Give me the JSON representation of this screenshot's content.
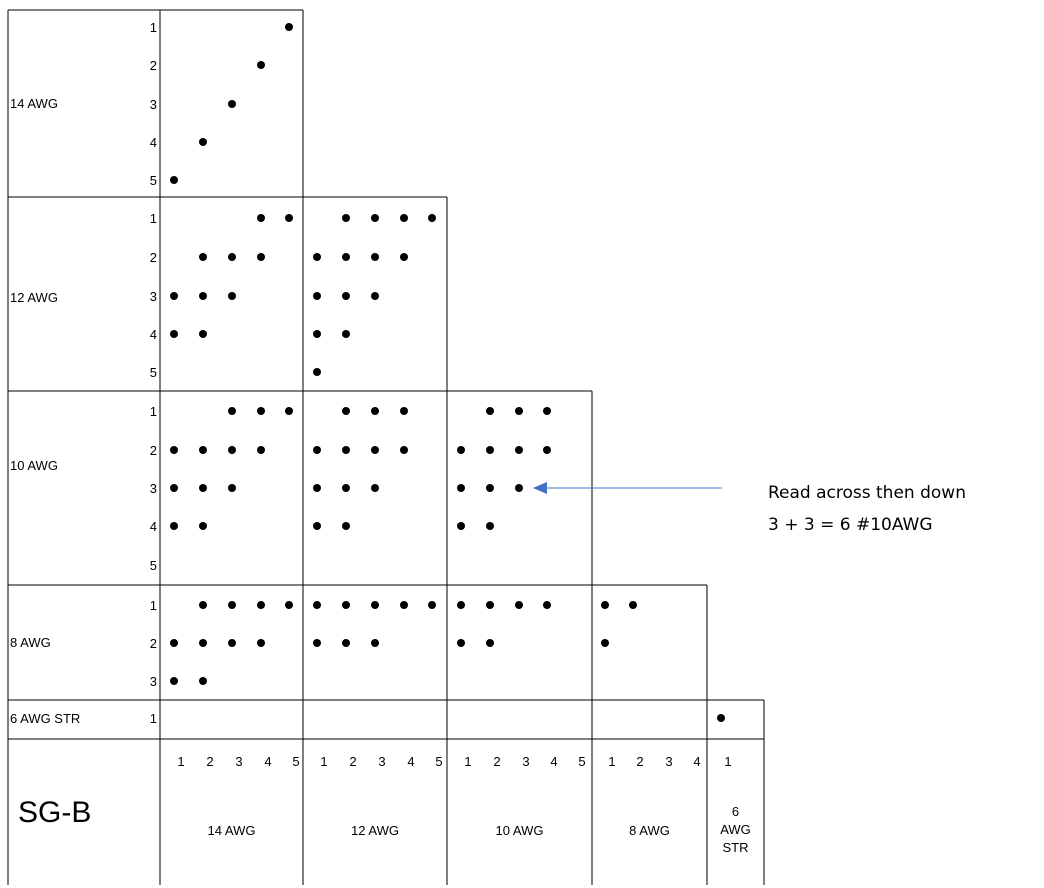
{
  "corner_label": "SG-B",
  "annotation": {
    "line1": "Read across then down",
    "line2": "3 + 3 = 6 #10AWG",
    "arrow_color": "#4472C4"
  },
  "row_groups": [
    {
      "label": "14 AWG",
      "rows": [
        "1",
        "2",
        "3",
        "4",
        "5"
      ]
    },
    {
      "label": "12 AWG",
      "rows": [
        "1",
        "2",
        "3",
        "4",
        "5"
      ]
    },
    {
      "label": "10 AWG",
      "rows": [
        "1",
        "2",
        "3",
        "4",
        "5"
      ]
    },
    {
      "label": "8 AWG",
      "rows": [
        "1",
        "2",
        "3"
      ]
    },
    {
      "label": "6 AWG STR",
      "rows": [
        "1"
      ]
    }
  ],
  "col_groups": [
    {
      "label": "14 AWG",
      "cols": [
        "1",
        "2",
        "3",
        "4",
        "5"
      ]
    },
    {
      "label": "12 AWG",
      "cols": [
        "1",
        "2",
        "3",
        "4",
        "5"
      ]
    },
    {
      "label": "10 AWG",
      "cols": [
        "1",
        "2",
        "3",
        "4",
        "5"
      ]
    },
    {
      "label": "8 AWG",
      "cols": [
        "1",
        "2",
        "3",
        "4"
      ]
    },
    {
      "label_lines": [
        "6",
        "AWG",
        "STR"
      ],
      "cols": [
        "1"
      ]
    }
  ],
  "dots": [
    {
      "rg": 0,
      "r": 1,
      "cg": 0,
      "c": 5
    },
    {
      "rg": 0,
      "r": 2,
      "cg": 0,
      "c": 4
    },
    {
      "rg": 0,
      "r": 3,
      "cg": 0,
      "c": 3
    },
    {
      "rg": 0,
      "r": 4,
      "cg": 0,
      "c": 2
    },
    {
      "rg": 0,
      "r": 5,
      "cg": 0,
      "c": 1
    },
    {
      "rg": 1,
      "r": 1,
      "cg": 0,
      "c": 4
    },
    {
      "rg": 1,
      "r": 1,
      "cg": 0,
      "c": 5
    },
    {
      "rg": 1,
      "r": 2,
      "cg": 0,
      "c": 2
    },
    {
      "rg": 1,
      "r": 2,
      "cg": 0,
      "c": 3
    },
    {
      "rg": 1,
      "r": 2,
      "cg": 0,
      "c": 4
    },
    {
      "rg": 1,
      "r": 3,
      "cg": 0,
      "c": 1
    },
    {
      "rg": 1,
      "r": 3,
      "cg": 0,
      "c": 2
    },
    {
      "rg": 1,
      "r": 3,
      "cg": 0,
      "c": 3
    },
    {
      "rg": 1,
      "r": 4,
      "cg": 0,
      "c": 1
    },
    {
      "rg": 1,
      "r": 4,
      "cg": 0,
      "c": 2
    },
    {
      "rg": 1,
      "r": 1,
      "cg": 1,
      "c": 2
    },
    {
      "rg": 1,
      "r": 1,
      "cg": 1,
      "c": 3
    },
    {
      "rg": 1,
      "r": 1,
      "cg": 1,
      "c": 4
    },
    {
      "rg": 1,
      "r": 1,
      "cg": 1,
      "c": 5
    },
    {
      "rg": 1,
      "r": 2,
      "cg": 1,
      "c": 1
    },
    {
      "rg": 1,
      "r": 2,
      "cg": 1,
      "c": 2
    },
    {
      "rg": 1,
      "r": 2,
      "cg": 1,
      "c": 3
    },
    {
      "rg": 1,
      "r": 2,
      "cg": 1,
      "c": 4
    },
    {
      "rg": 1,
      "r": 3,
      "cg": 1,
      "c": 1
    },
    {
      "rg": 1,
      "r": 3,
      "cg": 1,
      "c": 2
    },
    {
      "rg": 1,
      "r": 3,
      "cg": 1,
      "c": 3
    },
    {
      "rg": 1,
      "r": 4,
      "cg": 1,
      "c": 1
    },
    {
      "rg": 1,
      "r": 4,
      "cg": 1,
      "c": 2
    },
    {
      "rg": 1,
      "r": 5,
      "cg": 1,
      "c": 1
    },
    {
      "rg": 2,
      "r": 1,
      "cg": 0,
      "c": 3
    },
    {
      "rg": 2,
      "r": 1,
      "cg": 0,
      "c": 4
    },
    {
      "rg": 2,
      "r": 1,
      "cg": 0,
      "c": 5
    },
    {
      "rg": 2,
      "r": 2,
      "cg": 0,
      "c": 1
    },
    {
      "rg": 2,
      "r": 2,
      "cg": 0,
      "c": 2
    },
    {
      "rg": 2,
      "r": 2,
      "cg": 0,
      "c": 3
    },
    {
      "rg": 2,
      "r": 2,
      "cg": 0,
      "c": 4
    },
    {
      "rg": 2,
      "r": 3,
      "cg": 0,
      "c": 1
    },
    {
      "rg": 2,
      "r": 3,
      "cg": 0,
      "c": 2
    },
    {
      "rg": 2,
      "r": 3,
      "cg": 0,
      "c": 3
    },
    {
      "rg": 2,
      "r": 4,
      "cg": 0,
      "c": 1
    },
    {
      "rg": 2,
      "r": 4,
      "cg": 0,
      "c": 2
    },
    {
      "rg": 2,
      "r": 1,
      "cg": 1,
      "c": 2
    },
    {
      "rg": 2,
      "r": 1,
      "cg": 1,
      "c": 3
    },
    {
      "rg": 2,
      "r": 1,
      "cg": 1,
      "c": 4
    },
    {
      "rg": 2,
      "r": 2,
      "cg": 1,
      "c": 1
    },
    {
      "rg": 2,
      "r": 2,
      "cg": 1,
      "c": 2
    },
    {
      "rg": 2,
      "r": 2,
      "cg": 1,
      "c": 3
    },
    {
      "rg": 2,
      "r": 2,
      "cg": 1,
      "c": 4
    },
    {
      "rg": 2,
      "r": 3,
      "cg": 1,
      "c": 1
    },
    {
      "rg": 2,
      "r": 3,
      "cg": 1,
      "c": 2
    },
    {
      "rg": 2,
      "r": 3,
      "cg": 1,
      "c": 3
    },
    {
      "rg": 2,
      "r": 4,
      "cg": 1,
      "c": 1
    },
    {
      "rg": 2,
      "r": 4,
      "cg": 1,
      "c": 2
    },
    {
      "rg": 2,
      "r": 1,
      "cg": 2,
      "c": 2
    },
    {
      "rg": 2,
      "r": 1,
      "cg": 2,
      "c": 3
    },
    {
      "rg": 2,
      "r": 1,
      "cg": 2,
      "c": 4
    },
    {
      "rg": 2,
      "r": 2,
      "cg": 2,
      "c": 1
    },
    {
      "rg": 2,
      "r": 2,
      "cg": 2,
      "c": 2
    },
    {
      "rg": 2,
      "r": 2,
      "cg": 2,
      "c": 3
    },
    {
      "rg": 2,
      "r": 2,
      "cg": 2,
      "c": 4
    },
    {
      "rg": 2,
      "r": 3,
      "cg": 2,
      "c": 1
    },
    {
      "rg": 2,
      "r": 3,
      "cg": 2,
      "c": 2
    },
    {
      "rg": 2,
      "r": 3,
      "cg": 2,
      "c": 3
    },
    {
      "rg": 2,
      "r": 4,
      "cg": 2,
      "c": 1
    },
    {
      "rg": 2,
      "r": 4,
      "cg": 2,
      "c": 2
    },
    {
      "rg": 3,
      "r": 1,
      "cg": 0,
      "c": 2
    },
    {
      "rg": 3,
      "r": 1,
      "cg": 0,
      "c": 3
    },
    {
      "rg": 3,
      "r": 1,
      "cg": 0,
      "c": 4
    },
    {
      "rg": 3,
      "r": 1,
      "cg": 0,
      "c": 5
    },
    {
      "rg": 3,
      "r": 2,
      "cg": 0,
      "c": 1
    },
    {
      "rg": 3,
      "r": 2,
      "cg": 0,
      "c": 2
    },
    {
      "rg": 3,
      "r": 2,
      "cg": 0,
      "c": 3
    },
    {
      "rg": 3,
      "r": 2,
      "cg": 0,
      "c": 4
    },
    {
      "rg": 3,
      "r": 3,
      "cg": 0,
      "c": 1
    },
    {
      "rg": 3,
      "r": 3,
      "cg": 0,
      "c": 2
    },
    {
      "rg": 3,
      "r": 1,
      "cg": 1,
      "c": 1
    },
    {
      "rg": 3,
      "r": 1,
      "cg": 1,
      "c": 2
    },
    {
      "rg": 3,
      "r": 1,
      "cg": 1,
      "c": 3
    },
    {
      "rg": 3,
      "r": 1,
      "cg": 1,
      "c": 4
    },
    {
      "rg": 3,
      "r": 1,
      "cg": 1,
      "c": 5
    },
    {
      "rg": 3,
      "r": 2,
      "cg": 1,
      "c": 1
    },
    {
      "rg": 3,
      "r": 2,
      "cg": 1,
      "c": 2
    },
    {
      "rg": 3,
      "r": 2,
      "cg": 1,
      "c": 3
    },
    {
      "rg": 3,
      "r": 1,
      "cg": 2,
      "c": 1
    },
    {
      "rg": 3,
      "r": 1,
      "cg": 2,
      "c": 2
    },
    {
      "rg": 3,
      "r": 1,
      "cg": 2,
      "c": 3
    },
    {
      "rg": 3,
      "r": 1,
      "cg": 2,
      "c": 4
    },
    {
      "rg": 3,
      "r": 2,
      "cg": 2,
      "c": 1
    },
    {
      "rg": 3,
      "r": 2,
      "cg": 2,
      "c": 2
    },
    {
      "rg": 3,
      "r": 1,
      "cg": 3,
      "c": 1
    },
    {
      "rg": 3,
      "r": 1,
      "cg": 3,
      "c": 2
    },
    {
      "rg": 3,
      "r": 2,
      "cg": 3,
      "c": 1
    },
    {
      "rg": 4,
      "r": 1,
      "cg": 4,
      "c": 1
    }
  ]
}
